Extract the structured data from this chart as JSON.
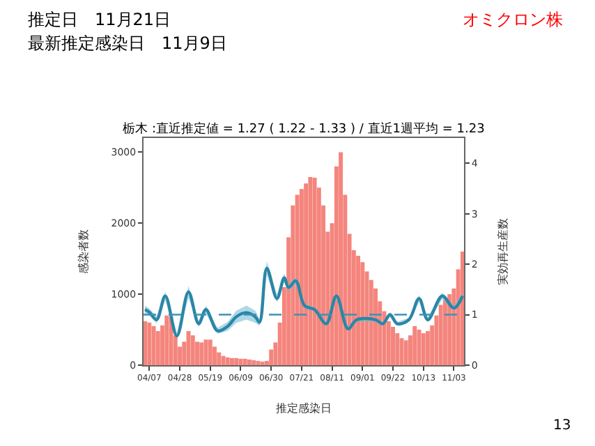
{
  "chart_data": {
    "type": "bar",
    "title": "栃木 :直近推定値 = 1.27 ( 1.22 - 1.33 ) / 直近1週平均 = 1.23",
    "annotations": [
      "推定日　11月21日",
      "最新推定感染日　11月9日",
      "オミクロン株",
      "13"
    ],
    "xlabel": "推定感染日",
    "ylabel": "感染者数",
    "y2label": "実効再生産数",
    "xlim": [
      "--04-03",
      "--11-10"
    ],
    "xticks": [
      {
        "value": "--04-07",
        "label": "04/07"
      },
      {
        "value": "--04-28",
        "label": "04/28"
      },
      {
        "value": "--05-19",
        "label": "05/19"
      },
      {
        "value": "--06-09",
        "label": "06/09"
      },
      {
        "value": "--06-30",
        "label": "06/30"
      },
      {
        "value": "--07-21",
        "label": "07/21"
      },
      {
        "value": "--08-11",
        "label": "08/11"
      },
      {
        "value": "--09-01",
        "label": "09/01"
      },
      {
        "value": "--09-22",
        "label": "09/22"
      },
      {
        "value": "--10-13",
        "label": "10/13"
      },
      {
        "value": "--11-03",
        "label": "11/03"
      }
    ],
    "ylim": [
      0,
      3200
    ],
    "yticks": [
      0,
      1000,
      2000,
      3000
    ],
    "y2lim": [
      0,
      4.5
    ],
    "y2ticks": [
      0,
      1,
      2,
      3,
      4
    ],
    "ref_lines": [
      {
        "axis": "y2",
        "value": 1,
        "color": "#3a93b5",
        "line_style": "dashed"
      }
    ],
    "series": [
      {
        "color": "#f4857d",
        "x": [
          "--04-04",
          "--04-07",
          "--04-10",
          "--04-13",
          "--04-16",
          "--04-19",
          "--04-22",
          "--04-25",
          "--04-28",
          "--05-01",
          "--05-04",
          "--05-07",
          "--05-10",
          "--05-13",
          "--05-16",
          "--05-19",
          "--05-22",
          "--05-25",
          "--05-28",
          "--05-31",
          "--06-03",
          "--06-06",
          "--06-09",
          "--06-12",
          "--06-15",
          "--06-18",
          "--06-21",
          "--06-24",
          "--06-27",
          "--06-30",
          "--07-03",
          "--07-06",
          "--07-09",
          "--07-12",
          "--07-15",
          "--07-18",
          "--07-21",
          "--07-24",
          "--07-27",
          "--07-30",
          "--08-02",
          "--08-05",
          "--08-08",
          "--08-11",
          "--08-14",
          "--08-17",
          "--08-20",
          "--08-23",
          "--08-26",
          "--08-29",
          "--09-01",
          "--09-04",
          "--09-07",
          "--09-10",
          "--09-13",
          "--09-16",
          "--09-19",
          "--09-22",
          "--09-25",
          "--09-28",
          "--10-01",
          "--10-04",
          "--10-07",
          "--10-10",
          "--10-13",
          "--10-16",
          "--10-19",
          "--10-22",
          "--10-25",
          "--10-28",
          "--10-31",
          "--11-03",
          "--11-06",
          "--11-09"
        ],
        "values": [
          620,
          600,
          550,
          480,
          560,
          700,
          680,
          420,
          260,
          330,
          480,
          420,
          330,
          320,
          360,
          360,
          260,
          180,
          130,
          110,
          100,
          100,
          90,
          90,
          80,
          70,
          60,
          50,
          60,
          220,
          320,
          600,
          1100,
          1800,
          2250,
          2400,
          2480,
          2560,
          2650,
          2640,
          2500,
          2250,
          1880,
          2000,
          2800,
          3000,
          2400,
          1850,
          1620,
          1540,
          1450,
          1320,
          1200,
          1080,
          900,
          760,
          620,
          540,
          450,
          380,
          350,
          420,
          550,
          500,
          450,
          480,
          560,
          700,
          850,
          920,
          1000,
          1080,
          1350,
          1600
        ]
      },
      {
        "type": "line",
        "axis": "y2",
        "color": "#2b86a6",
        "x": [
          "--04-04",
          "--04-07",
          "--04-12",
          "--04-18",
          "--04-26",
          "--05-04",
          "--05-11",
          "--05-16",
          "--05-24",
          "--05-31",
          "--06-06",
          "--06-13",
          "--06-19",
          "--06-22",
          "--06-27",
          "--07-04",
          "--07-09",
          "--07-12",
          "--07-17",
          "--07-23",
          "--07-30",
          "--08-07",
          "--08-14",
          "--08-22",
          "--08-28",
          "--09-10",
          "--09-15",
          "--09-20",
          "--09-25",
          "--10-03",
          "--10-10",
          "--10-16",
          "--10-26",
          "--11-03",
          "--11-09"
        ],
        "values": [
          1.1,
          1.05,
          0.9,
          1.37,
          0.58,
          1.45,
          0.82,
          1.1,
          0.68,
          0.77,
          0.96,
          1.04,
          0.96,
          0.85,
          1.92,
          1.32,
          1.73,
          1.54,
          1.67,
          1.18,
          1.1,
          0.82,
          1.37,
          0.72,
          0.9,
          0.9,
          0.82,
          1.0,
          0.82,
          0.9,
          1.32,
          0.9,
          1.37,
          1.13,
          1.37
        ],
        "lower": [
          1.02,
          0.98,
          0.83,
          1.28,
          0.52,
          1.33,
          0.76,
          1.02,
          0.62,
          0.68,
          0.84,
          0.9,
          0.84,
          0.78,
          1.78,
          1.24,
          1.64,
          1.47,
          1.6,
          1.13,
          1.06,
          0.78,
          1.31,
          0.68,
          0.86,
          0.86,
          0.78,
          0.95,
          0.78,
          0.86,
          1.25,
          0.85,
          1.3,
          1.08,
          1.3
        ],
        "upper": [
          1.18,
          1.12,
          0.97,
          1.46,
          0.64,
          1.57,
          0.88,
          1.18,
          0.74,
          0.86,
          1.08,
          1.18,
          1.08,
          0.92,
          2.06,
          1.4,
          1.82,
          1.61,
          1.74,
          1.23,
          1.14,
          0.86,
          1.43,
          0.76,
          0.94,
          0.94,
          0.86,
          1.05,
          0.86,
          0.94,
          1.39,
          0.95,
          1.44,
          1.18,
          1.44
        ]
      }
    ]
  }
}
